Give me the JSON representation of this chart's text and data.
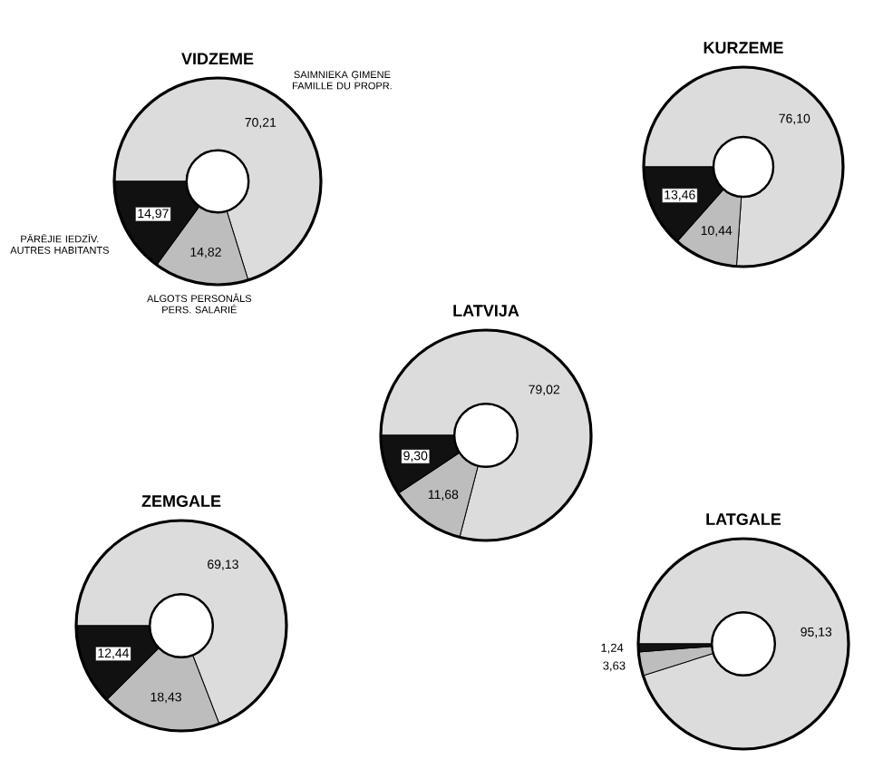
{
  "chart_data": [
    {
      "type": "donut",
      "title": "VIDZEME",
      "categories": [
        "SAIMNIEKA ĢIMENE FAMILLE DU PROPR.",
        "ALGOTS PERSONĀLS PERS. SALARIÉ",
        "PĀRĒJIE IEDZĪV. AUTRES HABITANTS"
      ],
      "values": [
        70.21,
        14.82,
        14.97
      ],
      "colors": [
        "#dcdcdc",
        "#bdbdbd",
        "#111111"
      ],
      "value_labels": [
        "70,21",
        "14,82",
        "14,97"
      ]
    },
    {
      "type": "donut",
      "title": "KURZEME",
      "categories": [
        null,
        null,
        null
      ],
      "values": [
        76.1,
        10.44,
        13.46
      ],
      "colors": [
        "#dcdcdc",
        "#bdbdbd",
        "#111111"
      ],
      "value_labels": [
        "76,10",
        "10,44",
        "13,46"
      ]
    },
    {
      "type": "donut",
      "title": "LATVIJA",
      "categories": [
        null,
        null,
        null
      ],
      "values": [
        79.02,
        11.68,
        9.3
      ],
      "colors": [
        "#dcdcdc",
        "#bdbdbd",
        "#111111"
      ],
      "value_labels": [
        "79,02",
        "11,68",
        "9,30"
      ]
    },
    {
      "type": "donut",
      "title": "ZEMGALE",
      "categories": [
        null,
        null,
        null
      ],
      "values": [
        69.13,
        18.43,
        12.44
      ],
      "colors": [
        "#dcdcdc",
        "#bdbdbd",
        "#111111"
      ],
      "value_labels": [
        "69,13",
        "18,43",
        "12,44"
      ]
    },
    {
      "type": "donut",
      "title": "LATGALE",
      "categories": [
        null,
        null,
        null
      ],
      "values": [
        95.13,
        3.63,
        1.24
      ],
      "colors": [
        "#dcdcdc",
        "#bdbdbd",
        "#111111"
      ],
      "value_labels": [
        "95,13",
        "3,63",
        "1,24"
      ]
    }
  ]
}
